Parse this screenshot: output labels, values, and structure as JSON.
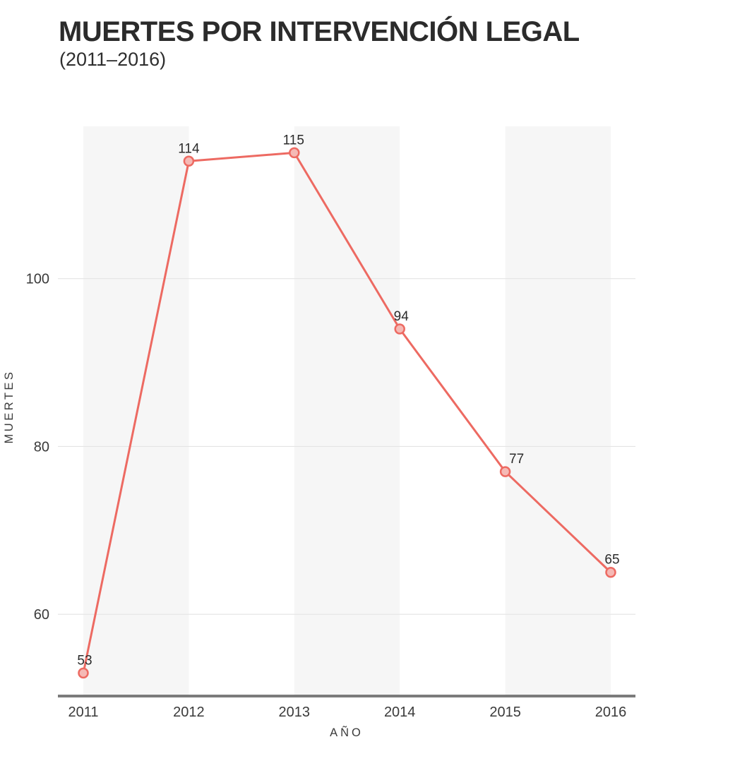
{
  "header": {
    "title": "MUERTES POR INTERVENCIÓN LEGAL",
    "subtitle": "(2011–2016)"
  },
  "chart_data": {
    "type": "line",
    "title": "MUERTES POR INTERVENCIÓN LEGAL",
    "subtitle": "(2011–2016)",
    "categories": [
      "2011",
      "2012",
      "2013",
      "2014",
      "2015",
      "2016"
    ],
    "values": [
      53,
      114,
      115,
      94,
      77,
      65
    ],
    "xlabel": "AÑO",
    "ylabel": "MUERTES",
    "yticks": [
      60,
      80,
      100
    ],
    "ylim": [
      50,
      118
    ],
    "grid": "horizontal",
    "legend_position": "none",
    "point_labels_visible": true,
    "background_bands": "alternating vertical bands between year pairs 2011-2012, 2013-2014, 2015-2016",
    "colors": {
      "line": "#ed6a62",
      "point_fill": "#f5b9b5",
      "point_stroke": "#ed6a62",
      "grid": "#e4e4e4",
      "band": "#f6f6f6",
      "axis": "#7b7b7b",
      "title_text": "#2b2b2b",
      "tick_text": "#3a3a3a",
      "label_text": "#2b2b2b",
      "background": "#ffffff"
    }
  }
}
